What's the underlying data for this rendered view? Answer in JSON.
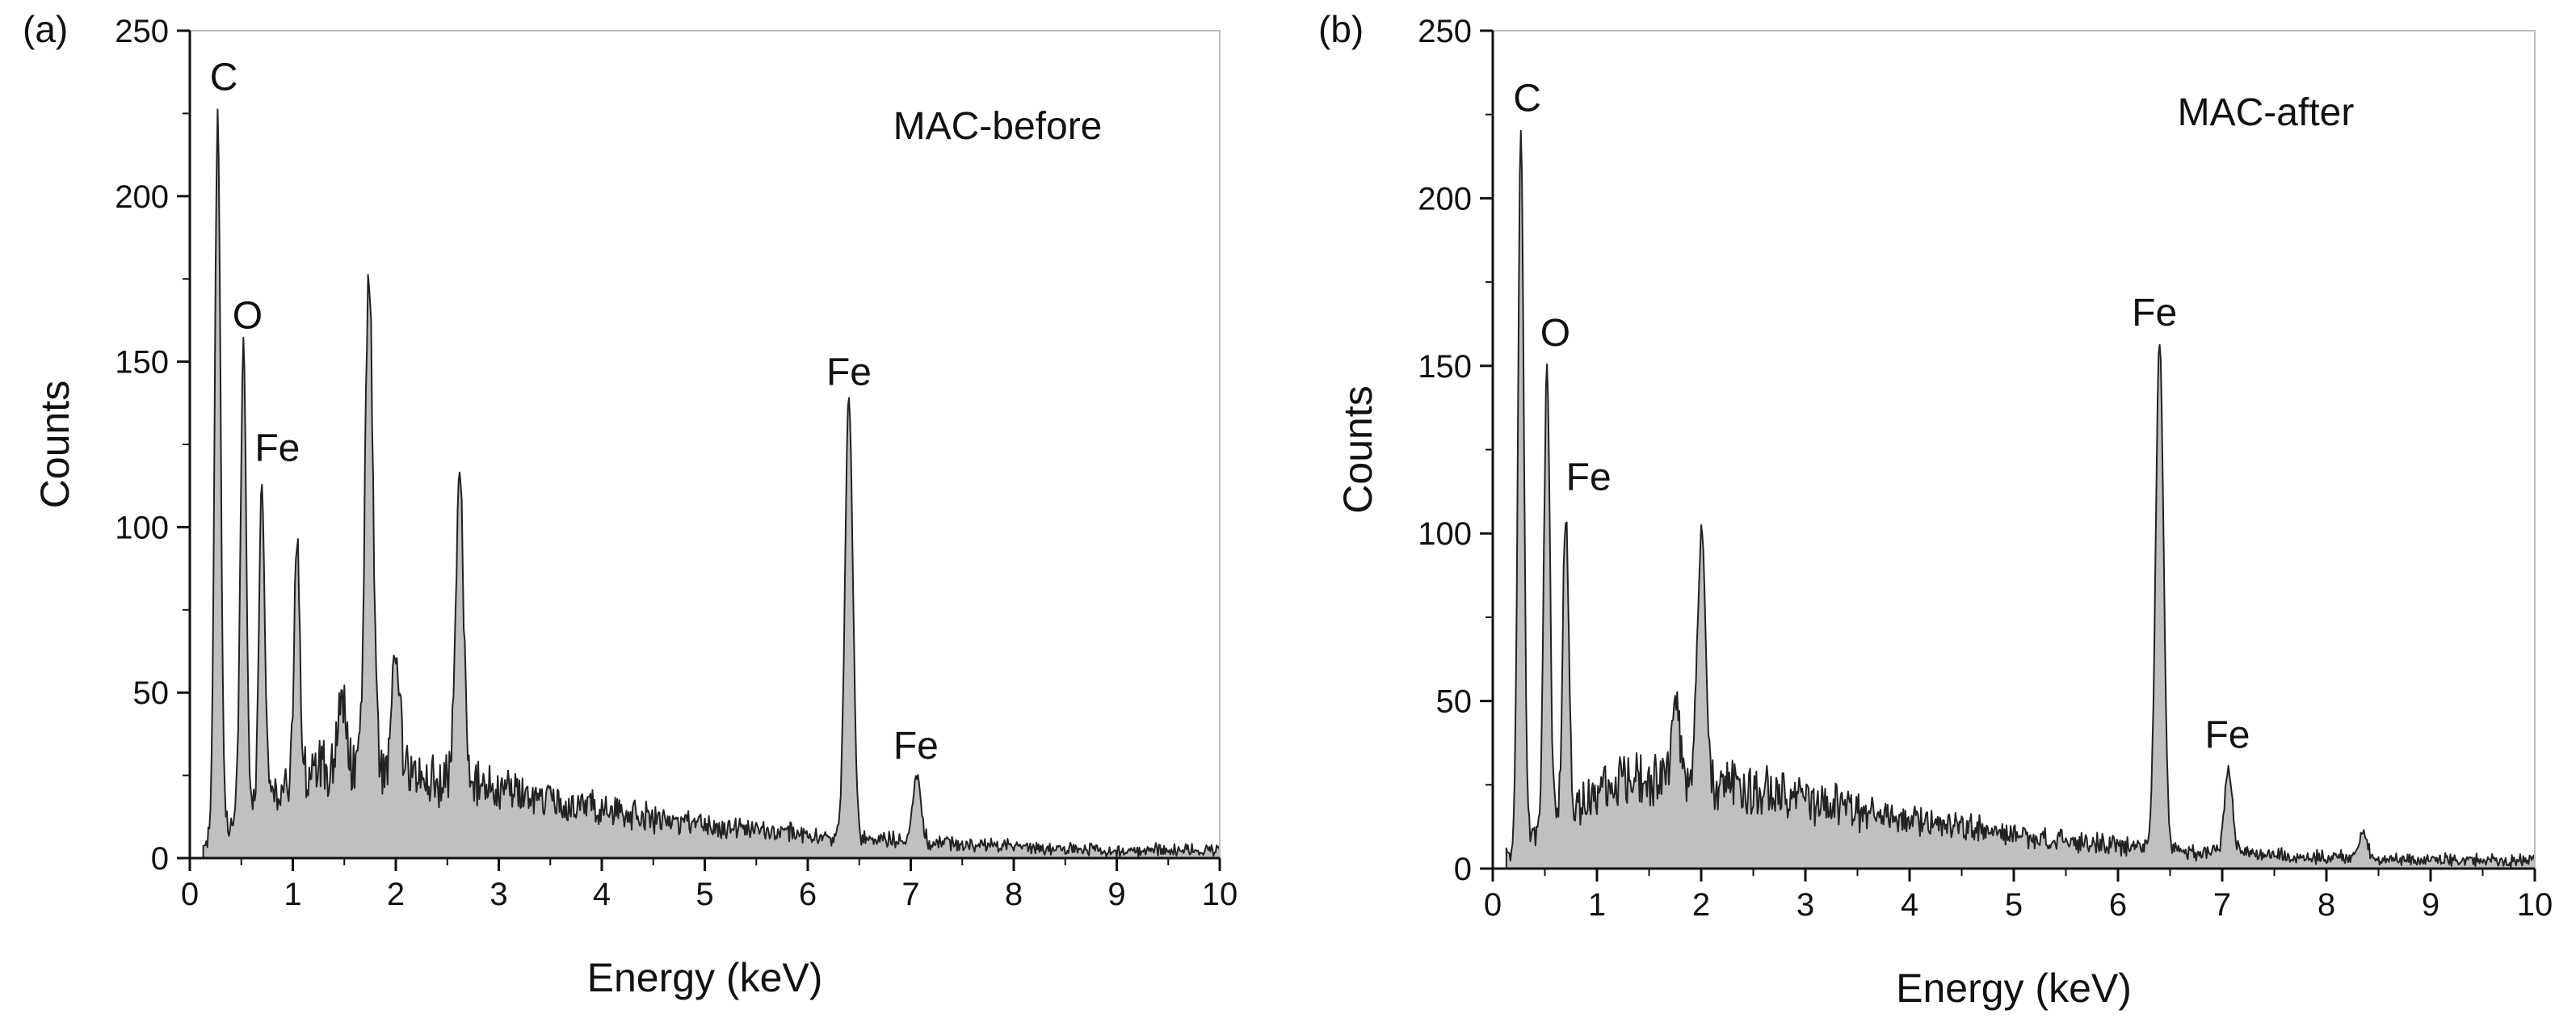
{
  "chart_data": [
    {
      "panel_label": "(a)",
      "type": "area",
      "sample_label": "MAC-before",
      "xlabel": "Energy (keV)",
      "ylabel": "Counts",
      "xlim": [
        0,
        10
      ],
      "ylim": [
        0,
        250
      ],
      "xticks": [
        0,
        1,
        2,
        3,
        4,
        5,
        6,
        7,
        8,
        9,
        10
      ],
      "yticks": [
        0,
        50,
        100,
        150,
        200,
        250
      ],
      "fill_color": "#c0c0c0",
      "line_color": "#222222",
      "peaks": [
        {
          "label": "C",
          "x": 0.27,
          "y": 225
        },
        {
          "label": "O",
          "x": 0.52,
          "y": 155
        },
        {
          "label": "Fe",
          "x": 0.7,
          "y": 115
        },
        {
          "label": "",
          "x": 1.04,
          "y": 95
        },
        {
          "label": "",
          "x": 1.48,
          "y": 49
        },
        {
          "label": "",
          "x": 1.74,
          "y": 175
        },
        {
          "label": "",
          "x": 2.0,
          "y": 63
        },
        {
          "label": "",
          "x": 2.62,
          "y": 114
        },
        {
          "label": "Fe",
          "x": 6.4,
          "y": 138
        },
        {
          "label": "Fe",
          "x": 7.06,
          "y": 25
        }
      ],
      "annotations": [
        {
          "text": "C",
          "x": 0.33,
          "y": 232
        },
        {
          "text": "O",
          "x": 0.56,
          "y": 160
        },
        {
          "text": "Fe",
          "x": 0.85,
          "y": 120
        },
        {
          "text": "Fe",
          "x": 6.4,
          "y": 143
        },
        {
          "text": "Fe",
          "x": 7.05,
          "y": 30
        }
      ]
    },
    {
      "panel_label": "(b)",
      "type": "area",
      "sample_label": "MAC-after",
      "xlabel": "Energy (keV)",
      "ylabel": "Counts",
      "xlim": [
        0,
        10
      ],
      "ylim": [
        0,
        250
      ],
      "xticks": [
        0,
        1,
        2,
        3,
        4,
        5,
        6,
        7,
        8,
        9,
        10
      ],
      "yticks": [
        0,
        50,
        100,
        150,
        200,
        250
      ],
      "fill_color": "#c0c0c0",
      "line_color": "#222222",
      "peaks": [
        {
          "label": "C",
          "x": 0.27,
          "y": 220
        },
        {
          "label": "O",
          "x": 0.52,
          "y": 151
        },
        {
          "label": "Fe",
          "x": 0.7,
          "y": 108
        },
        {
          "label": "",
          "x": 2.0,
          "y": 100
        },
        {
          "label": "",
          "x": 1.76,
          "y": 48
        },
        {
          "label": "Fe",
          "x": 6.4,
          "y": 157
        },
        {
          "label": "Fe",
          "x": 7.06,
          "y": 30
        },
        {
          "label": "",
          "x": 8.35,
          "y": 12
        }
      ],
      "annotations": [
        {
          "text": "C",
          "x": 0.33,
          "y": 226
        },
        {
          "text": "O",
          "x": 0.6,
          "y": 156
        },
        {
          "text": "Fe",
          "x": 0.92,
          "y": 113
        },
        {
          "text": "Fe",
          "x": 6.35,
          "y": 162
        },
        {
          "text": "Fe",
          "x": 7.05,
          "y": 36
        }
      ]
    }
  ]
}
